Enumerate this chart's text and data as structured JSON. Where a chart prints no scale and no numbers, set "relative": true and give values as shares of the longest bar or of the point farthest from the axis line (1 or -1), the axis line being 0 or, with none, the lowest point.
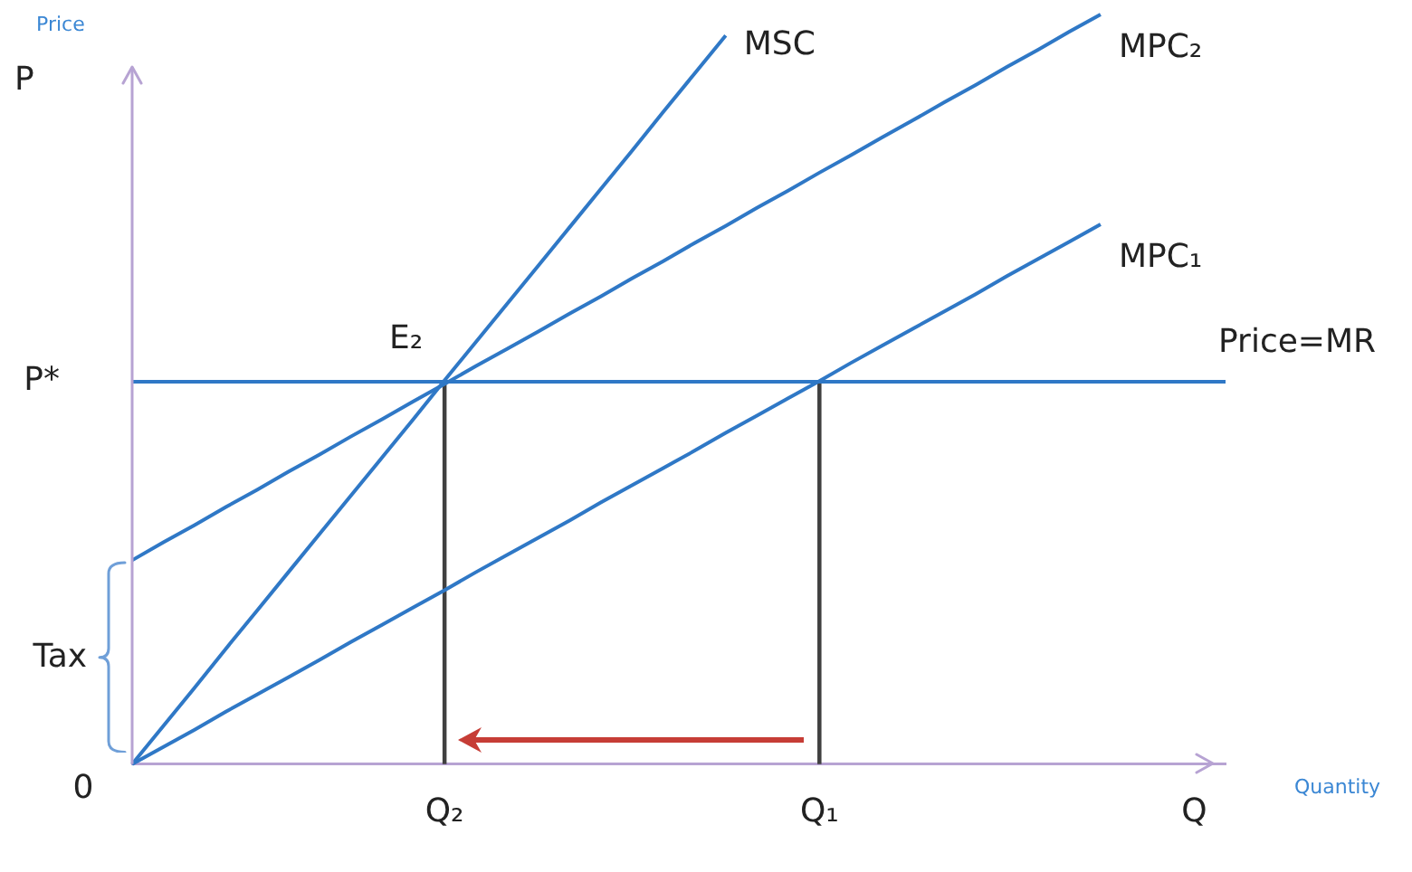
{
  "chart_data": {
    "type": "line",
    "relative": true,
    "xlabel": "Quantity",
    "ylabel": "Price",
    "categories": [
      null,
      null,
      null,
      null,
      null,
      null,
      null,
      null,
      null,
      null,
      "Q₂",
      null,
      null,
      null,
      null,
      null,
      null,
      null,
      null,
      null,
      null,
      null,
      "Q₁",
      null,
      null,
      null,
      null,
      null,
      null,
      null,
      null,
      null,
      null,
      null,
      "Q",
      null
    ],
    "series": [
      {
        "name": "MSC",
        "color": "#2f78c6",
        "values": [
          0,
          0.051,
          0.102,
          0.154,
          0.205,
          0.256,
          0.307,
          0.358,
          0.409,
          0.46,
          0.512,
          0.563,
          0.614,
          0.665,
          0.716,
          0.767,
          0.818,
          0.87,
          0.921,
          0.972,
          null,
          null,
          null,
          null,
          null,
          null,
          null,
          null,
          null,
          null,
          null,
          null,
          null,
          null,
          null,
          null
        ]
      },
      {
        "name": "MPC₂",
        "color": "#2f78c6",
        "values": [
          0.272,
          0.296,
          0.319,
          0.343,
          0.366,
          0.39,
          0.413,
          0.437,
          0.46,
          0.484,
          0.507,
          0.531,
          0.554,
          0.577,
          0.601,
          0.624,
          0.648,
          0.671,
          0.695,
          0.718,
          0.742,
          0.765,
          0.789,
          0.812,
          0.836,
          0.859,
          0.883,
          0.906,
          0.93,
          0.953,
          0.977,
          1,
          null,
          null,
          null,
          null
        ]
      },
      {
        "name": "MPC₁",
        "color": "#2f78c6",
        "values": [
          0,
          0.023,
          0.046,
          0.07,
          0.093,
          0.116,
          0.139,
          0.163,
          0.186,
          0.209,
          0.232,
          0.256,
          0.279,
          0.302,
          0.325,
          0.349,
          0.372,
          0.395,
          0.418,
          0.442,
          0.465,
          0.488,
          0.511,
          0.535,
          0.558,
          0.581,
          0.604,
          0.627,
          0.651,
          0.674,
          0.697,
          0.72,
          null,
          null,
          null,
          null
        ]
      },
      {
        "name": "Price=MR",
        "color": "#2f78c6",
        "values": [
          0.51,
          0.51,
          0.51,
          0.51,
          0.51,
          0.51,
          0.51,
          0.51,
          0.51,
          0.51,
          0.51,
          0.51,
          0.51,
          0.51,
          0.51,
          0.51,
          0.51,
          0.51,
          0.51,
          0.51,
          0.51,
          0.51,
          0.51,
          0.51,
          0.51,
          0.51,
          0.51,
          0.51,
          0.51,
          0.51,
          0.51,
          0.51,
          0.51,
          0.51,
          0.51,
          0.51
        ]
      },
      {
        "type": "bar",
        "color": "#404040",
        "values": [
          null,
          null,
          null,
          null,
          null,
          null,
          null,
          null,
          null,
          null,
          0.51,
          null,
          null,
          null,
          null,
          null,
          null,
          null,
          null,
          null,
          null,
          null,
          0.51,
          null,
          null,
          null,
          null,
          null,
          null,
          null,
          null,
          null,
          null,
          null,
          null,
          null
        ]
      }
    ],
    "annotations": [
      "P",
      "P*",
      "0",
      {
        "text": "E₂",
        "x": "Q₂",
        "y": 0.51
      },
      "Tax"
    ]
  }
}
